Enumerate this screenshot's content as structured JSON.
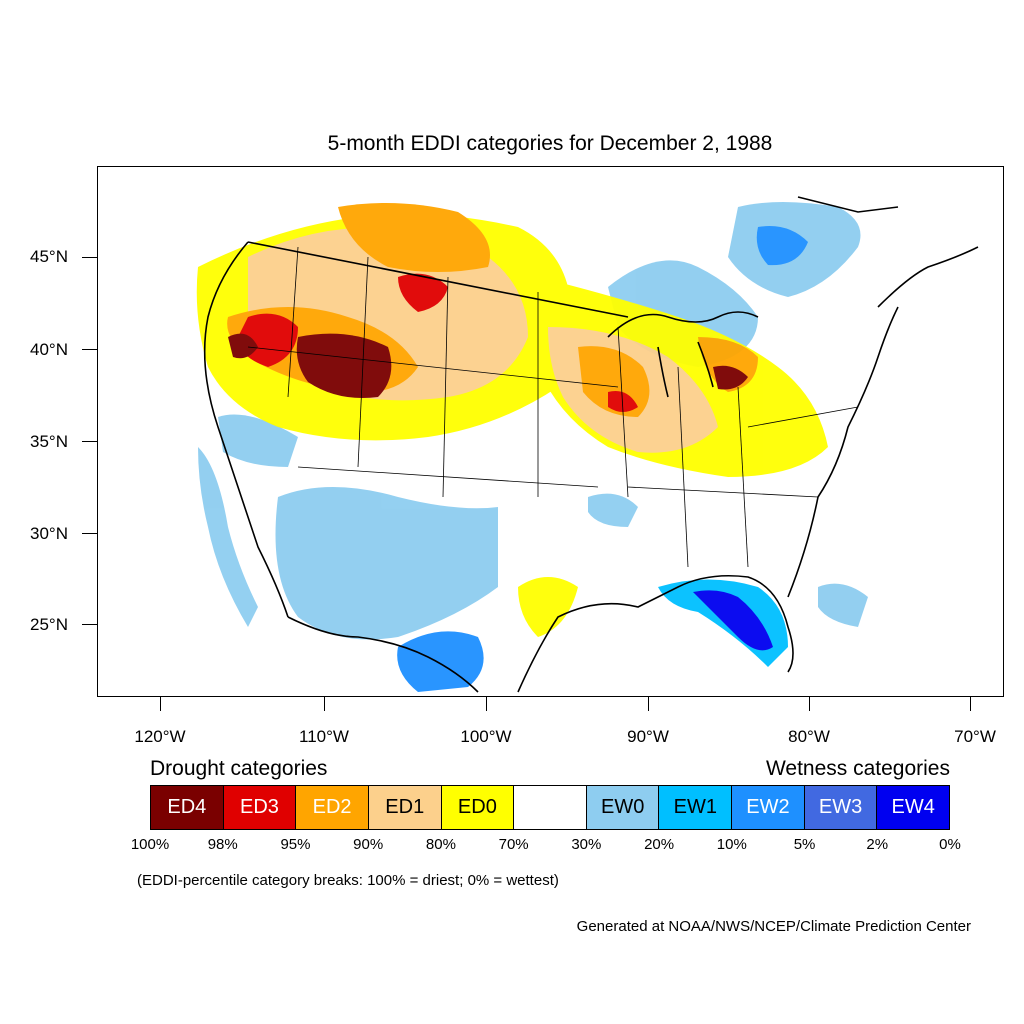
{
  "title": "5-month EDDI categories for December 2, 1988",
  "map": {
    "lat_labels": [
      "45°N",
      "40°N",
      "35°N",
      "30°N",
      "25°N"
    ],
    "lon_labels": [
      "120°W",
      "110°W",
      "100°W",
      "90°W",
      "80°W",
      "70°W"
    ]
  },
  "legend": {
    "drought_heading": "Drought categories",
    "wetness_heading": "Wetness categories",
    "categories": [
      {
        "label": "ED4",
        "color": "#7a0000",
        "text_color": "#ffffff"
      },
      {
        "label": "ED3",
        "color": "#e00000",
        "text_color": "#ffffff"
      },
      {
        "label": "ED2",
        "color": "#ffa500",
        "text_color": "#ffffff"
      },
      {
        "label": "ED1",
        "color": "#fcd08c",
        "text_color": "#000000"
      },
      {
        "label": "ED0",
        "color": "#ffff00",
        "text_color": "#000000"
      },
      {
        "label": "",
        "color": "#ffffff",
        "text_color": "#000000"
      },
      {
        "label": "EW0",
        "color": "#8ecdf0",
        "text_color": "#000000"
      },
      {
        "label": "EW1",
        "color": "#00bfff",
        "text_color": "#000000"
      },
      {
        "label": "EW2",
        "color": "#1e90ff",
        "text_color": "#ffffff"
      },
      {
        "label": "EW3",
        "color": "#4169e1",
        "text_color": "#ffffff"
      },
      {
        "label": "EW4",
        "color": "#0000f0",
        "text_color": "#ffffff"
      }
    ],
    "breaks": [
      "100%",
      "98%",
      "95%",
      "90%",
      "80%",
      "70%",
      "30%",
      "20%",
      "10%",
      "5%",
      "2%",
      "0%"
    ],
    "note": "(EDDI-percentile category breaks: 100% = driest; 0% = wettest)"
  },
  "credit": "Generated at NOAA/NWS/NCEP/Climate Prediction Center"
}
